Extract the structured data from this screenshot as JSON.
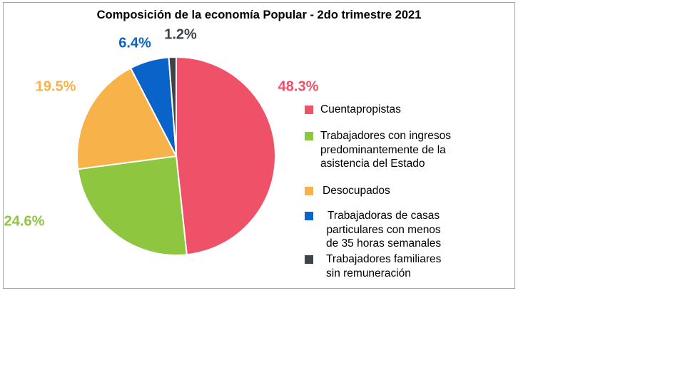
{
  "chart_data": {
    "type": "pie",
    "title": "Composición de la economía Popular - 2do trimestre 2021",
    "slices": [
      {
        "label": "Cuentapropistas",
        "legend_label": "Cuentapropistas",
        "value": 48.3,
        "value_label": "48.3%",
        "color": "#ef5169"
      },
      {
        "label": "Trabajadores con ingresos predominantemente de la asistencia del Estado",
        "legend_label": "Trabajadores con ingresos\npredominantemente de la\nasistencia del Estado",
        "value": 24.6,
        "value_label": "24.6%",
        "color": "#8fc640"
      },
      {
        "label": "Desocupados",
        "legend_label": "Desocupados",
        "value": 19.5,
        "value_label": "19.5%",
        "color": "#f7b24a"
      },
      {
        "label": "Trabajadoras de casas particulares con menos de 35 horas semanales",
        "legend_label": "Trabajadoras de casas\nparticulares con menos\nde 35 horas semanales",
        "value": 6.4,
        "value_label": "6.4%",
        "color": "#0a63c9"
      },
      {
        "label": "Trabajadores familiares sin remuneración",
        "legend_label": "Trabajadores familiares\nsin remuneración",
        "value": 1.2,
        "value_label": "1.2%",
        "color": "#3d4349"
      }
    ],
    "legend_position": "right"
  }
}
